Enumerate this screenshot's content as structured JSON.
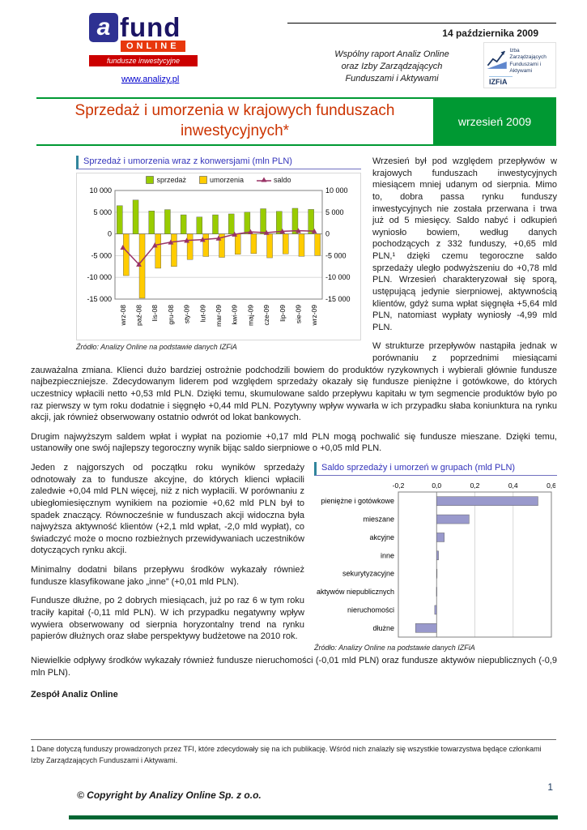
{
  "header": {
    "date": "14 października 2009",
    "subtitle_lines": [
      "Wspólny raport Analiz Online",
      "oraz Izby Zarządzających",
      "Funduszami i Aktywami"
    ],
    "website": "www.analizy.pl",
    "logo": {
      "a": "a",
      "fund": "fund",
      "online": "ONLINE",
      "tagline": "fundusze inwestycyjne"
    },
    "izfia": {
      "line1": "Izba Zarządzających",
      "line2": "Funduszami i Aktywami",
      "abbr": "IZFiA"
    },
    "title": "Sprzedaż i umorzenia w krajowych funduszach inwestycyjnych*",
    "period_badge": "wrzesień 2009"
  },
  "colors": {
    "accent_green": "#009933",
    "title_red": "#cc3300",
    "heading_blue": "#3333bb",
    "bottom_bar_green": "#006633"
  },
  "chart_data": [
    {
      "type": "bar",
      "title": "Sprzedaż i umorzenia wraz z konwersjami (mln PLN)",
      "categories": [
        "wrz-08",
        "paź-08",
        "lis-08",
        "gru-08",
        "sty-09",
        "lut-09",
        "mar-09",
        "kwi-09",
        "maj-09",
        "cze-09",
        "lip-09",
        "sie-09",
        "wrz-09"
      ],
      "series": [
        {
          "name": "sprzedaż",
          "kind": "bar",
          "color": "#99cc00",
          "values": [
            6500,
            7800,
            5300,
            5600,
            4400,
            3900,
            4400,
            4600,
            5000,
            5800,
            5200,
            5900,
            5640
          ]
        },
        {
          "name": "umorzenia",
          "kind": "bar",
          "color": "#ffcc00",
          "values": [
            -9600,
            -14800,
            -7900,
            -7500,
            -5900,
            -5200,
            -5400,
            -4700,
            -4530,
            -5500,
            -4600,
            -5170,
            -4990
          ]
        },
        {
          "name": "saldo",
          "kind": "line",
          "color": "#993366",
          "values": [
            -3100,
            -7000,
            -2600,
            -1900,
            -1500,
            -1300,
            -1000,
            -100,
            470,
            300,
            600,
            730,
            650
          ]
        }
      ],
      "ylim": [
        -15000,
        10000
      ],
      "y_tick_values": [
        10000,
        5000,
        0,
        -5000,
        -10000,
        -15000
      ],
      "y_tick_labels": [
        "10 000",
        "5 000",
        "0",
        "-5 000",
        "-10 000",
        "-15 000"
      ],
      "grid": true,
      "legend_position": "top",
      "source": "Źródło: Analizy Online na podstawie danych IZFiA"
    },
    {
      "type": "bar",
      "orientation": "horizontal",
      "title": "Saldo sprzedaży i umorzeń w grupach (mld PLN)",
      "categories": [
        "pieniężne i gotówkowe",
        "mieszane",
        "akcyjne",
        "inne",
        "sekurytyzacyjne",
        "aktywów niepublicznych",
        "nieruchomości",
        "dłużne"
      ],
      "values": [
        0.53,
        0.17,
        0.04,
        0.01,
        0.0,
        -0.0009,
        -0.01,
        -0.11
      ],
      "xlim": [
        -0.2,
        0.6
      ],
      "x_tick_values": [
        -0.2,
        0.0,
        0.2,
        0.4,
        0.6
      ],
      "x_tick_labels": [
        "-0,2",
        "0,0",
        "0,2",
        "0,4",
        "0,6"
      ],
      "bar_color": "#9999cc",
      "grid": true,
      "source": "Źródło: Analizy Online na podstawie danych IZFiA"
    }
  ],
  "body": {
    "p1": "Wrzesień był pod względem przepływów w krajowych funduszach inwestycyjnych miesiącem mniej udanym od sierpnia. Mimo to, dobra passa rynku funduszy inwestycyjnych nie została przerwana i trwa już od 5 miesięcy. Saldo nabyć i odkupień wyniosło bowiem, według danych pochodzących z 332 funduszy, +0,65 mld PLN,¹ dzięki czemu tegoroczne saldo sprzedaży uległo podwyższeniu do +0,78 mld PLN. Wrzesień charakteryzował się sporą, ustępującą jedynie sierpniowej, aktywnością klientów, gdyż suma wpłat sięgnęła +5,64 mld PLN, natomiast wypłaty wyniosły -4,99 mld PLN.",
    "p2": "W strukturze przepływów nastąpiła jednak w porównaniu z poprzednimi miesiącami zauważalna zmiana. Klienci dużo bardziej ostrożnie podchodzili bowiem do produktów ryzykownych i wybierali głównie fundusze najbezpieczniejsze. Zdecydowanym liderem pod względem sprzedaży okazały się fundusze pieniężne i gotówkowe, do których uczestnicy wpłacili netto +0,53 mld PLN. Dzięki temu, skumulowane saldo przepływu kapitału w tym segmencie produktów było po raz pierwszy w tym roku dodatnie i sięgnęło +0,44 mld PLN. Pozytywny wpływ wywarła w ich przypadku słaba koniunktura na rynku akcji, jak również obserwowany ostatnio odwrót od lokat bankowych.",
    "p3": "Drugim najwyższym saldem wpłat i wypłat na poziomie +0,17 mld PLN mogą pochwalić się fundusze mieszane. Dzięki temu, ustanowiły one swój najlepszy tegoroczny wynik bijąc saldo sierpniowe o +0,05 mld PLN.",
    "p4": "Jeden z najgorszych od początku roku wyników sprzedaży odnotowały za to fundusze akcyjne, do których klienci wpłacili zaledwie +0,04 mld PLN więcej, niż z nich wypłacili. W porównaniu z ubiegłomiesięcznym wynikiem na poziomie +0,62 mld PLN był to spadek znaczący. Równocześnie w funduszach akcji widoczna była najwyższa aktywność klientów (+2,1 mld wpłat, -2,0 mld wypłat), co świadczyć może o mocno rozbieżnych przewidywaniach uczestników dotyczących rynku akcji.",
    "p5": "Minimalny dodatni bilans przepływu środków wykazały również fundusze klasyfikowane jako „inne” (+0,01 mld PLN).",
    "p6": "Fundusze dłużne, po 2 dobrych miesiącach, już po raz 6 w tym roku traciły kapitał (-0,11 mld PLN). W ich przypadku negatywny wpływ wywiera obserwowany od sierpnia horyzontalny trend na rynku papierów dłużnych oraz słabe perspektywy budżetowe na 2010 rok.",
    "p7": "Niewielkie odpływy środków wykazały również fundusze nieruchomości (-0,01 mld PLN) oraz fundusze aktywów niepublicznych (-0,9 mln PLN).",
    "signature": "Zespół Analiz Online"
  },
  "footer": {
    "footnote": "1 Dane dotyczą funduszy prowadzonych przez TFI, które zdecydowały się na ich publikację. Wśród nich znalazły się wszystkie towarzystwa będące członkami Izby Zarządzających Funduszami i Aktywami.",
    "copyright": "© Copyright by Analizy Online Sp. z o.o.",
    "page_number": "1"
  }
}
